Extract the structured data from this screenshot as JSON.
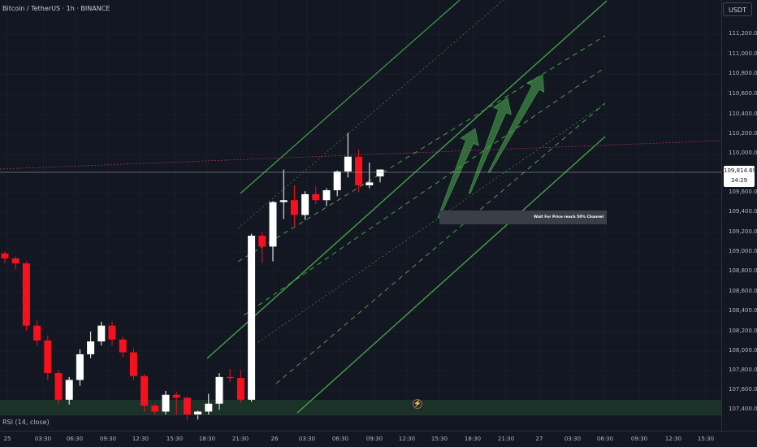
{
  "header": {
    "symbol_title": "Bitcoin / TetherUS · 1h · BINANCE",
    "currency_button": "USDT"
  },
  "price_axis": {
    "labels": [
      "111,200.00",
      "111,000.00",
      "110,800.00",
      "110,600.00",
      "110,400.00",
      "110,200.00",
      "110,000.00",
      "109,600.00",
      "109,400.00",
      "109,200.00",
      "109,000.00",
      "108,800.00",
      "108,600.00",
      "108,400.00",
      "108,200.00",
      "108,000.00",
      "107,800.00",
      "107,600.00",
      "107,400.00"
    ],
    "current_price": "109,814.69",
    "countdown": "34:29"
  },
  "time_axis": {
    "labels": [
      "25",
      "03:30",
      "06:30",
      "09:30",
      "12:30",
      "15:30",
      "18:30",
      "21:30",
      "26",
      "03:30",
      "06:30",
      "09:30",
      "12:30",
      "15:30",
      "18:30",
      "21:30",
      "27",
      "03:30",
      "06:30",
      "09:30",
      "12:30",
      "15:30"
    ]
  },
  "annotation": {
    "text": "Wait For Price reach 50% Channel"
  },
  "indicator": {
    "rsi_label": "RSI (14, close)"
  },
  "colors": {
    "background": "#131722",
    "bull_candle": "#ffffff",
    "bear_candle": "#f7101e",
    "channel": "#4caf50",
    "arrow": "#4caf50",
    "grid": "#1e222d",
    "volume_band": "#1d3a2a"
  },
  "chart_data": {
    "type": "candlestick",
    "symbol": "Bitcoin / TetherUS",
    "interval": "1h",
    "exchange": "BINANCE",
    "ylim": [
      107350,
      111350
    ],
    "candles": [
      {
        "o": 108980,
        "h": 109000,
        "c": 108930,
        "l": 108880
      },
      {
        "o": 108930,
        "h": 108950,
        "c": 108880,
        "l": 108820
      },
      {
        "o": 108880,
        "h": 108900,
        "c": 108250,
        "l": 108200
      },
      {
        "o": 108250,
        "h": 108300,
        "c": 108100,
        "l": 108050
      },
      {
        "o": 108100,
        "h": 108150,
        "c": 107770,
        "l": 107700
      },
      {
        "o": 107770,
        "h": 107800,
        "c": 107500,
        "l": 107450
      },
      {
        "o": 107500,
        "h": 107730,
        "c": 107700,
        "l": 107450
      },
      {
        "o": 107700,
        "h": 108010,
        "c": 107960,
        "l": 107640
      },
      {
        "o": 107960,
        "h": 108190,
        "c": 108090,
        "l": 107920
      },
      {
        "o": 108090,
        "h": 108290,
        "c": 108250,
        "l": 108050
      },
      {
        "o": 108250,
        "h": 108290,
        "c": 108110,
        "l": 108050
      },
      {
        "o": 108110,
        "h": 108140,
        "c": 107980,
        "l": 107930
      },
      {
        "o": 107980,
        "h": 108020,
        "c": 107740,
        "l": 107700
      },
      {
        "o": 107740,
        "h": 107760,
        "c": 107440,
        "l": 107380
      },
      {
        "o": 107440,
        "h": 107460,
        "c": 107380,
        "l": 107350
      },
      {
        "o": 107380,
        "h": 107590,
        "c": 107550,
        "l": 107350
      },
      {
        "o": 107550,
        "h": 107580,
        "c": 107520,
        "l": 107350
      },
      {
        "o": 107520,
        "h": 107530,
        "c": 107350,
        "l": 107300
      },
      {
        "o": 107350,
        "h": 107390,
        "c": 107380,
        "l": 107300
      },
      {
        "o": 107380,
        "h": 107560,
        "c": 107460,
        "l": 107350
      },
      {
        "o": 107460,
        "h": 107770,
        "c": 107730,
        "l": 107400
      },
      {
        "o": 107730,
        "h": 107810,
        "c": 107720,
        "l": 107680
      },
      {
        "o": 107720,
        "h": 107800,
        "c": 107500,
        "l": 107470
      },
      {
        "o": 107500,
        "h": 109180,
        "c": 109160,
        "l": 107480
      },
      {
        "o": 109160,
        "h": 109200,
        "c": 109050,
        "l": 108880
      },
      {
        "o": 109050,
        "h": 109510,
        "c": 109500,
        "l": 108900
      },
      {
        "o": 109500,
        "h": 109830,
        "c": 109520,
        "l": 109330
      },
      {
        "o": 109520,
        "h": 109670,
        "c": 109370,
        "l": 109260
      },
      {
        "o": 109370,
        "h": 109610,
        "c": 109580,
        "l": 109320
      },
      {
        "o": 109580,
        "h": 109660,
        "c": 109520,
        "l": 109480
      },
      {
        "o": 109520,
        "h": 109640,
        "c": 109620,
        "l": 109460
      },
      {
        "o": 109620,
        "h": 109820,
        "c": 109810,
        "l": 109560
      },
      {
        "o": 109810,
        "h": 110200,
        "c": 109960,
        "l": 109750
      },
      {
        "o": 109960,
        "h": 110030,
        "c": 109670,
        "l": 109600
      },
      {
        "o": 109670,
        "h": 109900,
        "c": 109700,
        "l": 109640
      },
      {
        "o": 109760,
        "h": 109830,
        "c": 109830,
        "l": 109700
      }
    ],
    "current_price": 109814.69,
    "annotation": "Wait For Price reach 50% Channel"
  }
}
